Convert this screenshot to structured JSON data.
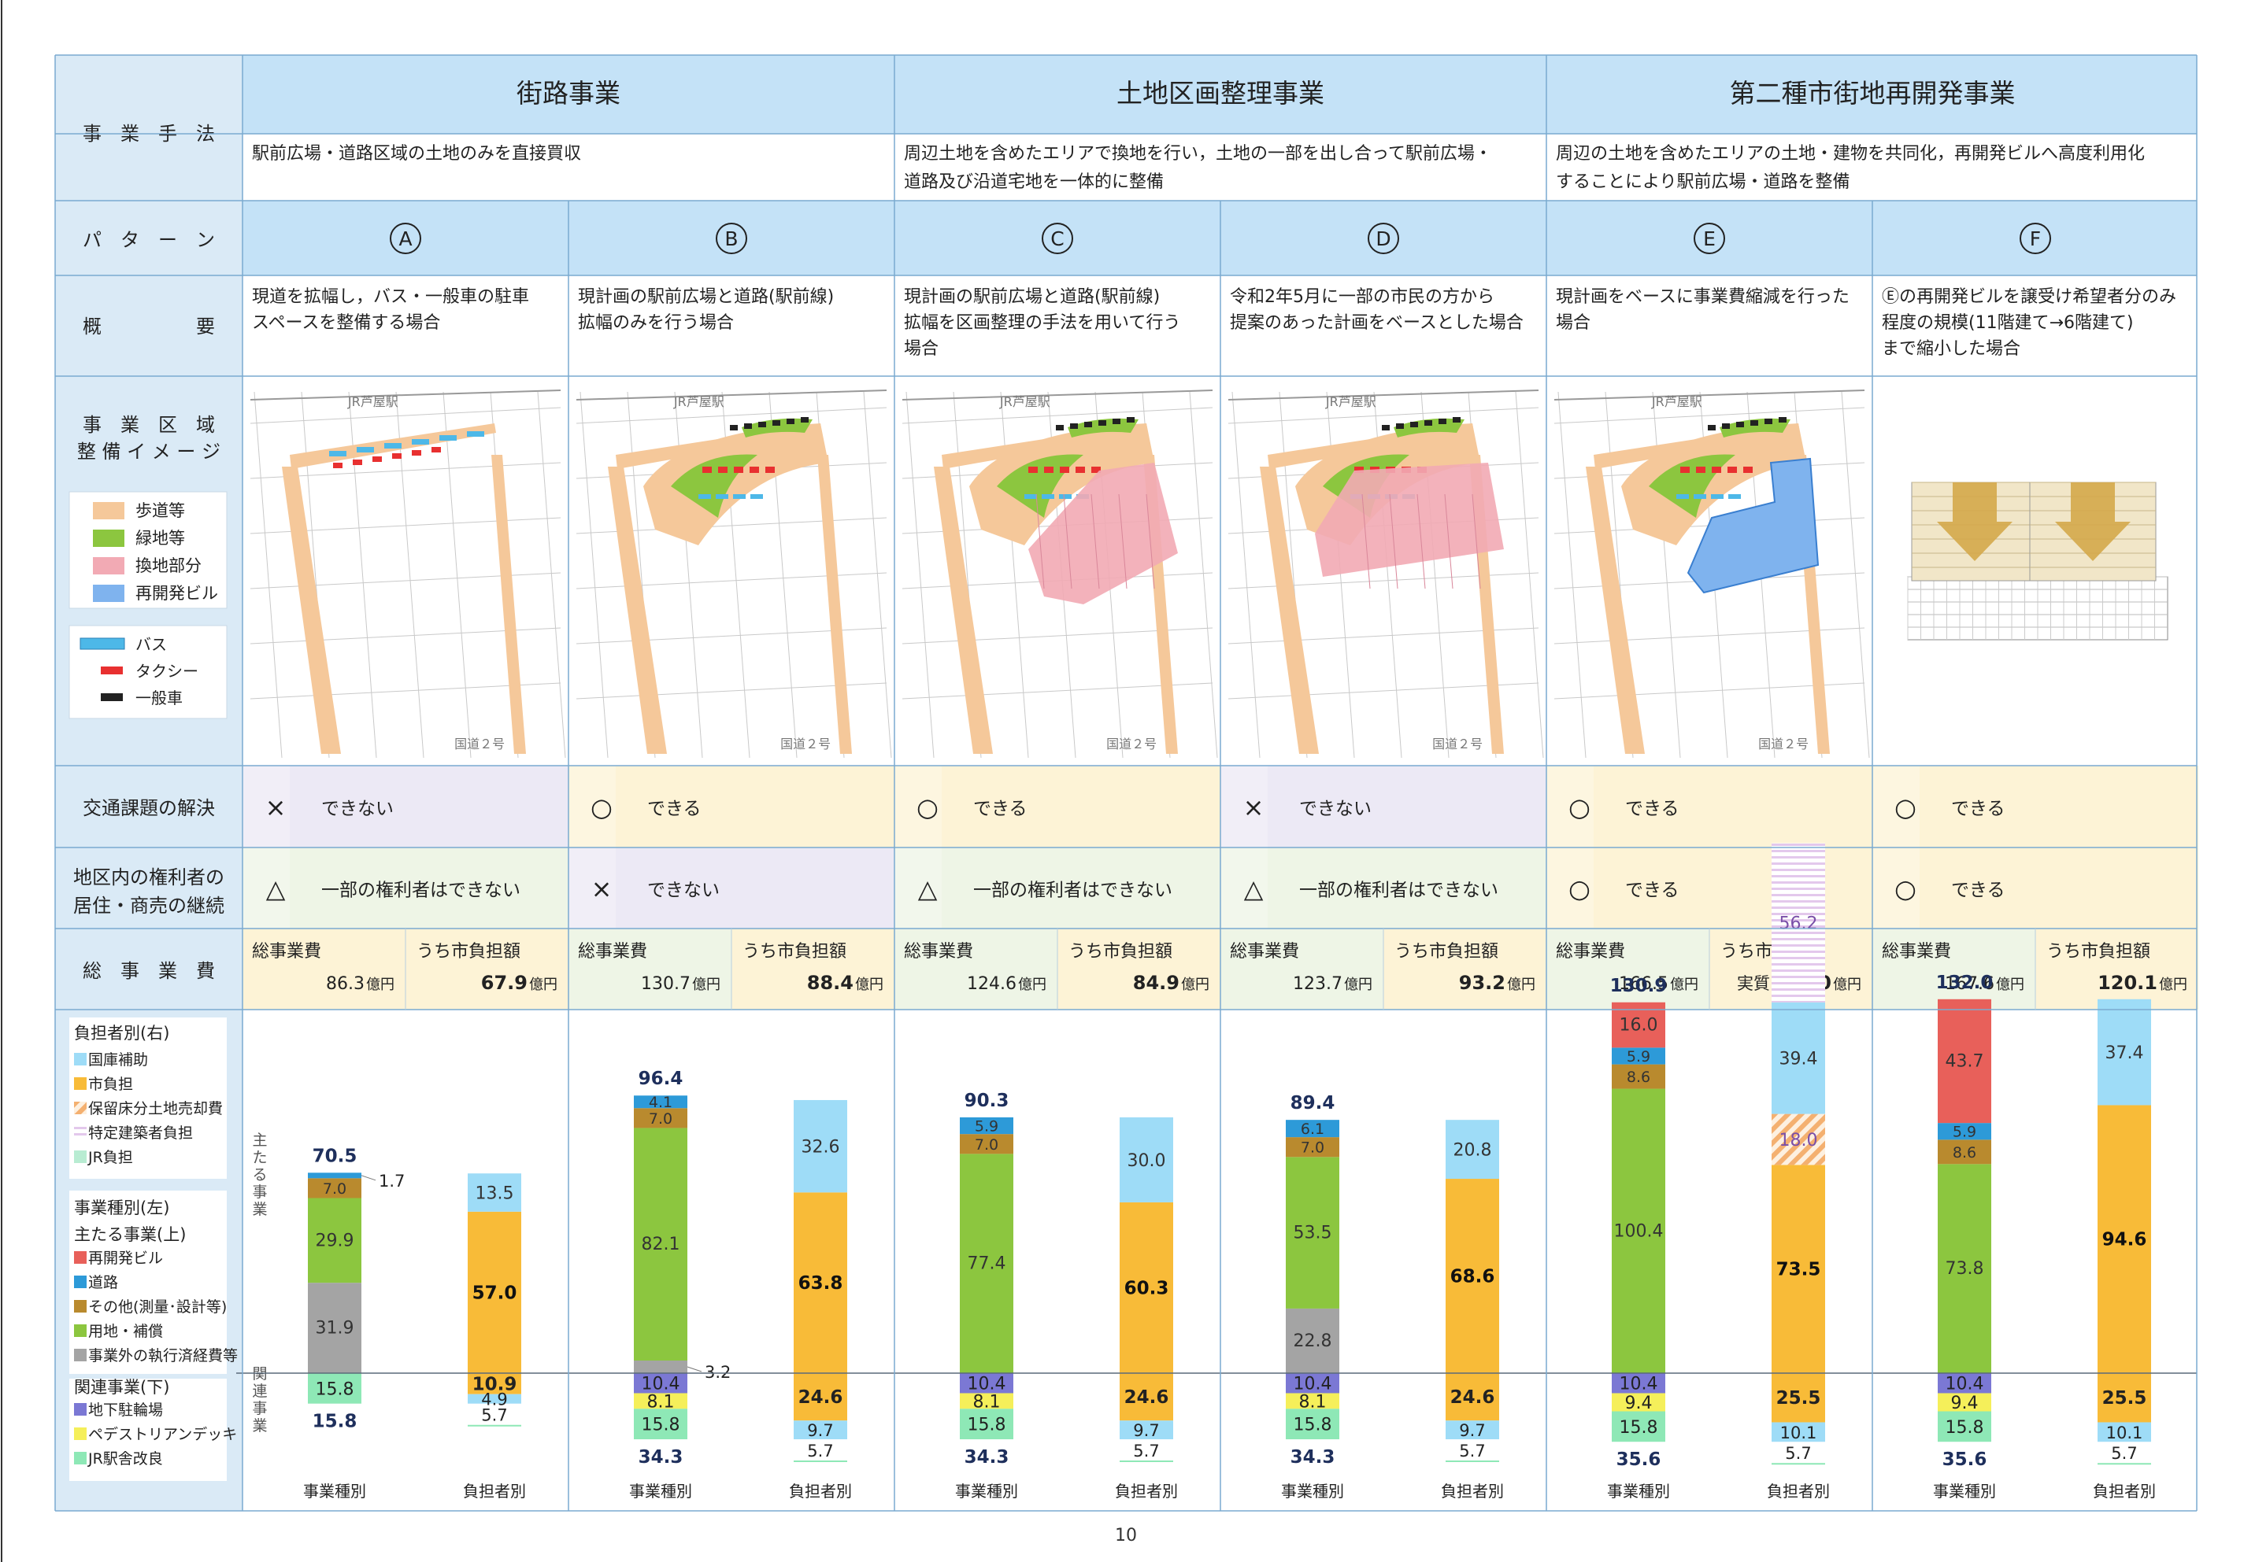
{
  "header": {
    "row_label": "事　業　手　法",
    "methods": [
      {
        "name": "街路事業",
        "desc": [
          "駅前広場・道路区域の土地のみを直接買収"
        ]
      },
      {
        "name": "土地区画整理事業",
        "desc": [
          "周辺土地を含めたエリアで換地を行い，土地の一部を出し合って駅前広場・",
          "道路及び沿道宅地を一体的に整備"
        ]
      },
      {
        "name": "第二種市街地再開発事業",
        "desc": [
          "周辺の土地を含めたエリアの土地・建物を共同化，再開発ビルへ高度利用化",
          "することにより駅前広場・道路を整備"
        ]
      }
    ]
  },
  "row_labels": {
    "pattern": "パ　タ　ー　ン",
    "overview": "概　　　　　要",
    "image_1": "事　業　区　域",
    "image_2": "整 備 イ メ ー ジ",
    "traffic": "交通課題の解決",
    "rights_1": "地区内の権利者の",
    "rights_2": "居住・商売の継続",
    "cost": "総　事　業　費"
  },
  "legend_map": [
    {
      "label": "歩道等",
      "color": "#f5c89a"
    },
    {
      "label": "緑地等",
      "color": "#8cc63f"
    },
    {
      "label": "換地部分",
      "color": "#f2aab4"
    },
    {
      "label": "再開発ビル",
      "color": "#7fb3ee"
    }
  ],
  "legend_vehicles": [
    {
      "label": "バス",
      "color": "#4db8e8"
    },
    {
      "label": "タクシー",
      "color": "#e83030"
    },
    {
      "label": "一般車",
      "color": "#222222"
    }
  ],
  "map_labels": {
    "station": "JR芦屋駅",
    "road": "国道２号"
  },
  "patterns": [
    {
      "letter": "A",
      "overview": [
        "現道を拡幅し，バス・一般車の駐車",
        "スペースを整備する場合"
      ],
      "traffic": {
        "symbol": "×",
        "text": "できない",
        "bg": "#ece9f5"
      },
      "rights": {
        "symbol": "△",
        "text": "一部の権利者はできない",
        "bg": "#eef5e6"
      },
      "cost": {
        "total_label": "総事業費",
        "total_value": "86.3",
        "city_label": "うち市負担額",
        "city_value": "67.9",
        "unit": "億円",
        "city_prefix": ""
      }
    },
    {
      "letter": "B",
      "overview": [
        "現計画の駅前広場と道路(駅前線)",
        "拡幅のみを行う場合"
      ],
      "traffic": {
        "symbol": "○",
        "text": "できる",
        "bg": "#fdf3d6"
      },
      "rights": {
        "symbol": "×",
        "text": "できない",
        "bg": "#ece9f5"
      },
      "cost": {
        "total_label": "総事業費",
        "total_value": "130.7",
        "city_label": "うち市負担額",
        "city_value": "88.4",
        "unit": "億円",
        "city_prefix": ""
      }
    },
    {
      "letter": "C",
      "overview": [
        "現計画の駅前広場と道路(駅前線)",
        "拡幅を区画整理の手法を用いて行う",
        "場合"
      ],
      "traffic": {
        "symbol": "○",
        "text": "できる",
        "bg": "#fdf3d6"
      },
      "rights": {
        "symbol": "△",
        "text": "一部の権利者はできない",
        "bg": "#eef5e6"
      },
      "cost": {
        "total_label": "総事業費",
        "total_value": "124.6",
        "city_label": "うち市負担額",
        "city_value": "84.9",
        "unit": "億円",
        "city_prefix": ""
      }
    },
    {
      "letter": "D",
      "overview": [
        "令和2年5月に一部の市民の方から",
        "提案のあった計画をベースとした場合"
      ],
      "traffic": {
        "symbol": "×",
        "text": "できない",
        "bg": "#ece9f5"
      },
      "rights": {
        "symbol": "△",
        "text": "一部の権利者はできない",
        "bg": "#eef5e6"
      },
      "cost": {
        "total_label": "総事業費",
        "total_value": "123.7",
        "city_label": "うち市負担額",
        "city_value": "93.2",
        "unit": "億円",
        "city_prefix": ""
      }
    },
    {
      "letter": "E",
      "overview": [
        "現計画をベースに事業費縮減を行った",
        "場合"
      ],
      "traffic": {
        "symbol": "○",
        "text": "できる",
        "bg": "#fdf3d6"
      },
      "rights": {
        "symbol": "○",
        "text": "できる",
        "bg": "#fdf3d6"
      },
      "cost": {
        "total_label": "総事業費",
        "total_value": "166.5",
        "city_label": "うち市負担額",
        "city_value": "99.0",
        "unit": "億円",
        "city_prefix": "実質"
      }
    },
    {
      "letter": "F",
      "overview": [
        "Ⓔの再開発ビルを譲受け希望者分のみ",
        "程度の規模(11階建て→6階建て)",
        "まで縮小した場合"
      ],
      "traffic": {
        "symbol": "○",
        "text": "できる",
        "bg": "#fdf3d6"
      },
      "rights": {
        "symbol": "○",
        "text": "できる",
        "bg": "#fdf3d6"
      },
      "cost": {
        "total_label": "総事業費",
        "total_value": "167.6",
        "city_label": "うち市負担額",
        "city_value": "120.1",
        "unit": "億円",
        "city_prefix": ""
      }
    }
  ],
  "chart_legend": {
    "burden_title": "負担者別(右)",
    "burden_items": [
      {
        "label": "国庫補助",
        "key": "kokko"
      },
      {
        "label": "市負担",
        "key": "shi"
      },
      {
        "label": "保留床分土地売却費",
        "key": "horyu"
      },
      {
        "label": "特定建築者負担",
        "key": "tokutei"
      },
      {
        "label": "JR負担",
        "key": "jr"
      }
    ],
    "type_title": "事業種別(左)",
    "main_subtitle": "主たる事業(上)",
    "main_items": [
      {
        "label": "再開発ビル",
        "key": "saikaihatsu"
      },
      {
        "label": "道路",
        "key": "doro"
      },
      {
        "label": "その他(測量･設計等)",
        "key": "sonota"
      },
      {
        "label": "用地・補償",
        "key": "yochi"
      },
      {
        "label": "事業外の執行済経費等",
        "key": "jigyogai"
      }
    ],
    "related_subtitle": "関連事業(下)",
    "related_items": [
      {
        "label": "地下駐輪場",
        "key": "chikachurin"
      },
      {
        "label": "ペデストリアンデッキ",
        "key": "deck"
      },
      {
        "label": "JR駅舎改良",
        "key": "ekisha"
      }
    ]
  },
  "chart_side_labels": {
    "main": "主たる事業",
    "related": "関連事業"
  },
  "colors": {
    "saikaihatsu": "#e8605a",
    "doro": "#2d9ad8",
    "sonota": "#b98a2e",
    "yochi": "#8cc63f",
    "jigyogai": "#a4a4a4",
    "chikachurin": "#7b78d4",
    "deck": "#f5ef5a",
    "ekisha": "#8ee8b6",
    "kokko": "#9edcf7",
    "shi": "#f8bb38",
    "horyu": "#f4c48a",
    "tokutei": "#e9d5ef",
    "jr": "#b8ecd2",
    "header_blue": "#c4e2f7",
    "label_bg": "#daeaf6"
  },
  "chart_data": {
    "type": "bar",
    "stacked": true,
    "categories": [
      "事業種別",
      "負担者別"
    ],
    "patterns": [
      {
        "id": "A",
        "type_main": [
          {
            "key": "jigyogai",
            "value": 31.9
          },
          {
            "key": "yochi",
            "value": 29.9
          },
          {
            "key": "sonota",
            "value": 7.0
          },
          {
            "key": "doro",
            "value": 1.7
          }
        ],
        "type_main_total": "70.5",
        "type_related": [
          {
            "key": "ekisha",
            "value": 15.8
          }
        ],
        "type_related_total": "15.8",
        "burden_main": [
          {
            "key": "shi",
            "value": 57.0
          },
          {
            "key": "kokko",
            "value": 13.5
          }
        ],
        "burden_related": [
          {
            "key": "shi",
            "value": 10.9
          },
          {
            "key": "kokko",
            "value": 4.9
          },
          {
            "key": "jr",
            "value": 5.7
          }
        ]
      },
      {
        "id": "B",
        "type_main": [
          {
            "key": "jigyogai",
            "value": 3.2
          },
          {
            "key": "yochi",
            "value": 82.1
          },
          {
            "key": "sonota",
            "value": 7.0
          },
          {
            "key": "doro",
            "value": 4.1
          }
        ],
        "type_main_total": "96.4",
        "type_related": [
          {
            "key": "chikachurin",
            "value": 10.4
          },
          {
            "key": "deck",
            "value": 8.1
          },
          {
            "key": "ekisha",
            "value": 15.8
          }
        ],
        "type_related_total": "34.3",
        "burden_main": [
          {
            "key": "shi",
            "value": 63.8
          },
          {
            "key": "kokko",
            "value": 32.6
          }
        ],
        "burden_related": [
          {
            "key": "shi",
            "value": 24.6
          },
          {
            "key": "kokko",
            "value": 9.7
          },
          {
            "key": "jr",
            "value": 5.7
          }
        ]
      },
      {
        "id": "C",
        "type_main": [
          {
            "key": "yochi",
            "value": 77.4
          },
          {
            "key": "sonota",
            "value": 7.0
          },
          {
            "key": "doro",
            "value": 5.9
          }
        ],
        "type_main_total": "90.3",
        "type_related": [
          {
            "key": "chikachurin",
            "value": 10.4
          },
          {
            "key": "deck",
            "value": 8.1
          },
          {
            "key": "ekisha",
            "value": 15.8
          }
        ],
        "type_related_total": "34.3",
        "burden_main": [
          {
            "key": "shi",
            "value": 60.3
          },
          {
            "key": "kokko",
            "value": 30.0
          }
        ],
        "burden_related": [
          {
            "key": "shi",
            "value": 24.6
          },
          {
            "key": "kokko",
            "value": 9.7
          },
          {
            "key": "jr",
            "value": 5.7
          }
        ]
      },
      {
        "id": "D",
        "type_main": [
          {
            "key": "jigyogai",
            "value": 22.8
          },
          {
            "key": "yochi",
            "value": 53.5
          },
          {
            "key": "sonota",
            "value": 7.0
          },
          {
            "key": "doro",
            "value": 6.1
          }
        ],
        "type_main_total": "89.4",
        "type_related": [
          {
            "key": "chikachurin",
            "value": 10.4
          },
          {
            "key": "deck",
            "value": 8.1
          },
          {
            "key": "ekisha",
            "value": 15.8
          }
        ],
        "type_related_total": "34.3",
        "burden_main": [
          {
            "key": "shi",
            "value": 68.6
          },
          {
            "key": "kokko",
            "value": 20.8
          }
        ],
        "burden_related": [
          {
            "key": "shi",
            "value": 24.6
          },
          {
            "key": "kokko",
            "value": 9.7
          },
          {
            "key": "jr",
            "value": 5.7
          }
        ]
      },
      {
        "id": "E",
        "type_main": [
          {
            "key": "yochi",
            "value": 100.4
          },
          {
            "key": "sonota",
            "value": 8.6
          },
          {
            "key": "doro",
            "value": 5.9
          },
          {
            "key": "saikaihatsu",
            "value": 16.0
          }
        ],
        "type_main_total": "130.9",
        "type_related": [
          {
            "key": "chikachurin",
            "value": 10.4
          },
          {
            "key": "deck",
            "value": 9.4
          },
          {
            "key": "ekisha",
            "value": 15.8
          }
        ],
        "type_related_total": "35.6",
        "burden_main": [
          {
            "key": "shi",
            "value": 73.5
          },
          {
            "key": "horyu",
            "value": 18.0
          },
          {
            "key": "kokko",
            "value": 39.4
          },
          {
            "key": "tokutei",
            "value": 56.2
          }
        ],
        "burden_related": [
          {
            "key": "shi",
            "value": 25.5
          },
          {
            "key": "kokko",
            "value": 10.1
          },
          {
            "key": "jr",
            "value": 5.7
          }
        ]
      },
      {
        "id": "F",
        "type_main": [
          {
            "key": "yochi",
            "value": 73.8
          },
          {
            "key": "sonota",
            "value": 8.6
          },
          {
            "key": "doro",
            "value": 5.9
          },
          {
            "key": "saikaihatsu",
            "value": 43.7
          }
        ],
        "type_main_total": "132.0",
        "type_related": [
          {
            "key": "chikachurin",
            "value": 10.4
          },
          {
            "key": "deck",
            "value": 9.4
          },
          {
            "key": "ekisha",
            "value": 15.8
          }
        ],
        "type_related_total": "35.6",
        "burden_main": [
          {
            "key": "shi",
            "value": 94.6
          },
          {
            "key": "kokko",
            "value": 37.4
          }
        ],
        "burden_related": [
          {
            "key": "shi",
            "value": 25.5
          },
          {
            "key": "kokko",
            "value": 10.1
          },
          {
            "key": "jr",
            "value": 5.7
          }
        ]
      }
    ]
  },
  "footer": {
    "page_number": "10"
  }
}
